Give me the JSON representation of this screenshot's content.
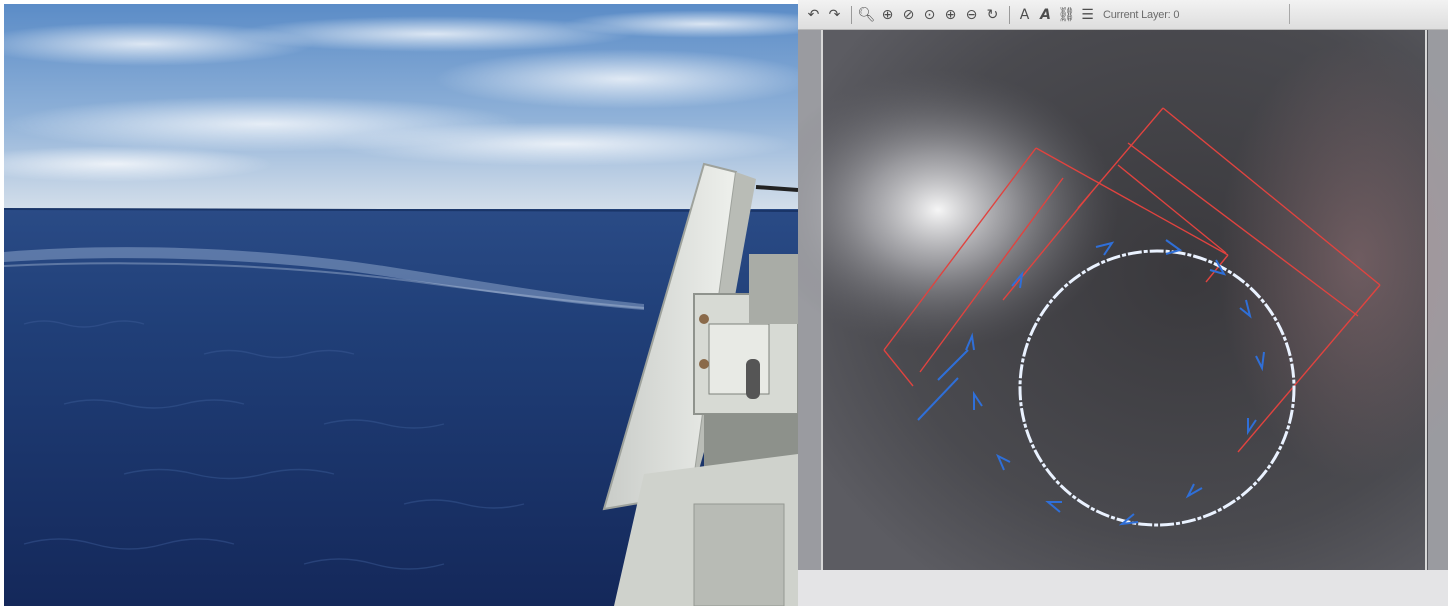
{
  "left_photo": {
    "colors": {
      "sky_top": "#5f8fc9",
      "sky_bottom": "#c9d9ea",
      "sea_far": "#1f3d7a",
      "sea_near": "#162c5c",
      "equipment": "#d9dcd6"
    }
  },
  "cad_window": {
    "toolbar": {
      "icons": [
        "undo-icon",
        "redo-icon",
        "zoom-window-icon",
        "zoom-extents-icon",
        "zoom-previous-icon",
        "zoom-realtime-icon",
        "zoom-in-icon",
        "zoom-out-icon",
        "pan-icon",
        "text-style-icon",
        "text-icon",
        "link-icon",
        "layer-manager-icon"
      ],
      "layer_label": "Current Layer: 0"
    },
    "colors": {
      "canvas": "#3c3c40",
      "dimension_lines": "#e0433f",
      "circle": "#eaf2ff",
      "arrows": "#2f6fd8",
      "toolbar": "#e6e6e6"
    }
  }
}
